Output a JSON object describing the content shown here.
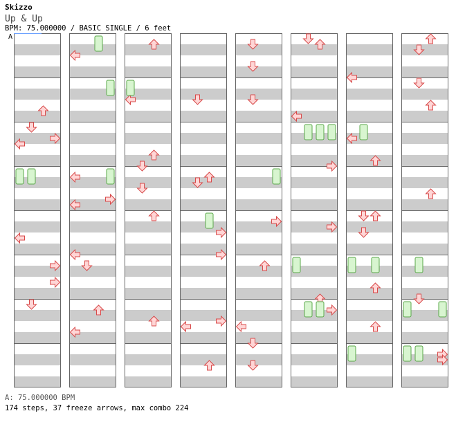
{
  "header": {
    "artist": "Skizzo",
    "title": "Up & Up",
    "info": "BPM: 75.000000 / BASIC SINGLE / 6 feet",
    "bpm_marker": "A"
  },
  "footer": {
    "bpm_legend": "A: 75.000000 BPM",
    "stats": "174 steps, 37 freeze arrows, max combo 224"
  },
  "colors": {
    "lane_stripe": "#cccccc",
    "border": "#666666",
    "arrow_fill": "#ffd6d6",
    "arrow_stroke": "#d84a4a",
    "freeze_fill": "#d8f5d0",
    "freeze_stroke": "#5aa84a",
    "bpm_marker_line": "#6aa0ff"
  },
  "chart_data": {
    "type": "stepchart",
    "columns": 8,
    "measures_per_column": 8,
    "lanes": [
      "left",
      "down",
      "up",
      "right"
    ],
    "notes": [
      [
        1,
        "L",
        3
      ],
      [
        1,
        "L",
        7
      ],
      [
        1,
        "D",
        5
      ],
      [
        1,
        "D",
        6
      ],
      [
        1,
        "D",
        8
      ],
      [
        1,
        "U",
        4
      ],
      [
        1,
        "U",
        5
      ],
      [
        1,
        "U",
        6
      ],
      [
        1,
        "R",
        6
      ],
      [
        1,
        "R",
        7
      ],
      [
        2,
        "L",
        3
      ],
      [
        2,
        "L",
        4
      ],
      [
        2,
        "D",
        1
      ],
      [
        2,
        "D",
        2
      ],
      [
        2,
        "D",
        4
      ],
      [
        2,
        "U",
        1
      ],
      [
        2,
        "U",
        2
      ],
      [
        2,
        "U",
        4
      ],
      [
        2,
        "U",
        7
      ],
      [
        3,
        "L",
        1
      ],
      [
        3,
        "D",
        1
      ],
      [
        3,
        "U",
        1
      ],
      [
        3,
        "D",
        3
      ],
      [
        3,
        "R",
        3
      ],
      [
        3,
        "D",
        7
      ],
      [
        3,
        "U",
        8
      ],
      [
        4,
        "L",
        1
      ],
      [
        4,
        "L",
        4
      ],
      [
        4,
        "D",
        2
      ],
      [
        4,
        "U",
        2
      ],
      [
        4,
        "U",
        3
      ],
      [
        4,
        "R",
        5
      ],
      [
        4,
        "R",
        6
      ],
      [
        5,
        "R",
        5
      ],
      [
        5,
        "D",
        5
      ],
      [
        5,
        "U",
        7
      ],
      [
        5,
        "L",
        7
      ],
      [
        6,
        "D",
        1
      ],
      [
        6,
        "U",
        1
      ],
      [
        6,
        "L",
        2
      ],
      [
        6,
        "R",
        3
      ],
      [
        6,
        "D",
        4
      ],
      [
        6,
        "U",
        5
      ],
      [
        6,
        "L",
        5
      ],
      [
        6,
        "R",
        5
      ],
      [
        6,
        "D",
        6
      ],
      [
        6,
        "U",
        7
      ],
      [
        6,
        "R",
        7
      ],
      [
        7,
        "L",
        5
      ],
      [
        7,
        "D",
        2
      ],
      [
        7,
        "U",
        3
      ],
      [
        7,
        "R",
        4
      ],
      [
        7,
        "U",
        6
      ],
      [
        7,
        "R",
        8
      ],
      [
        8,
        "L",
        2
      ],
      [
        8,
        "D",
        1
      ],
      [
        8,
        "D",
        3
      ],
      [
        8,
        "R",
        5
      ],
      [
        8,
        "U",
        6
      ],
      [
        8,
        "L",
        7
      ],
      [
        8,
        "D",
        7
      ],
      [
        8,
        "R",
        8
      ]
    ],
    "freezes": [
      [
        4,
        "L",
        1
      ],
      [
        4,
        "D",
        1
      ],
      [
        3,
        "U",
        6
      ],
      [
        3,
        "R",
        6
      ],
      [
        4,
        "R",
        2
      ],
      [
        4,
        "R",
        5
      ],
      [
        5,
        "U",
        4
      ],
      [
        3,
        "D",
        6
      ],
      [
        3,
        "D",
        7
      ],
      [
        6,
        "L",
        6
      ],
      [
        6,
        "U",
        7
      ],
      [
        6,
        "L",
        7
      ],
      [
        6,
        "D",
        8
      ],
      [
        7,
        "D",
        6
      ],
      [
        7,
        "U",
        6
      ],
      [
        7,
        "L",
        8
      ],
      [
        7,
        "R",
        8
      ],
      [
        8,
        "L",
        7
      ],
      [
        8,
        "D",
        8
      ],
      [
        8,
        "L",
        8
      ],
      [
        1,
        "U",
        2
      ],
      [
        2,
        "R",
        2
      ],
      [
        2,
        "L",
        3
      ]
    ]
  }
}
